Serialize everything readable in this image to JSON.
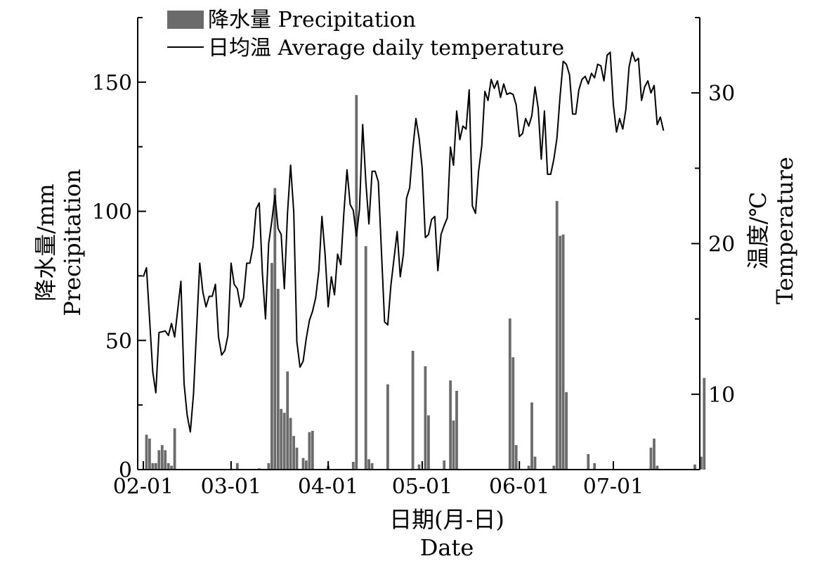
{
  "chart_data": {
    "type": "bar",
    "combo": "bar+line",
    "legend": {
      "placement": "top-left",
      "entries": [
        {
          "label": "降水量 Precipitation",
          "kind": "bar",
          "color": "#6b6b6b"
        },
        {
          "label": "日均温 Average daily temperature",
          "kind": "line",
          "color": "#000000"
        }
      ]
    },
    "x_axis": {
      "label_line1": "日期(月-日)",
      "label_line2": "Date",
      "start": "02-01",
      "end": "07-31",
      "ticks": [
        "02-01",
        "03-01",
        "04-01",
        "05-01",
        "06-01",
        "07-01"
      ]
    },
    "y_left": {
      "label_line1": "降水量/mm",
      "label_line2": "Precipitation",
      "ylim": [
        0,
        175
      ],
      "ticks": [
        0,
        50,
        100,
        150
      ]
    },
    "y_right": {
      "label_line1": "温度/℃",
      "label_line2": "Temperature",
      "ylim": [
        5,
        35
      ],
      "ticks": [
        10,
        20,
        30
      ]
    },
    "series": [
      {
        "name": "降水量 Precipitation",
        "type": "bar",
        "axis": "left",
        "color": "#6b6b6b",
        "points": [
          [
            "02-02",
            13.5
          ],
          [
            "02-03",
            12
          ],
          [
            "02-04",
            2.5
          ],
          [
            "02-05",
            2.5
          ],
          [
            "02-06",
            7.5
          ],
          [
            "02-07",
            9.5
          ],
          [
            "02-08",
            7.5
          ],
          [
            "02-09",
            2.5
          ],
          [
            "02-10",
            1.5
          ],
          [
            "02-11",
            16
          ],
          [
            "03-03",
            2.5
          ],
          [
            "03-10",
            0.5
          ],
          [
            "03-13",
            2.5
          ],
          [
            "03-14",
            80
          ],
          [
            "03-15",
            109
          ],
          [
            "03-16",
            70
          ],
          [
            "03-17",
            23.5
          ],
          [
            "03-18",
            22
          ],
          [
            "03-19",
            38
          ],
          [
            "03-20",
            20
          ],
          [
            "03-21",
            13
          ],
          [
            "03-22",
            8.5
          ],
          [
            "03-24",
            4.5
          ],
          [
            "03-25",
            3.5
          ],
          [
            "03-26",
            14.5
          ],
          [
            "03-27",
            15
          ],
          [
            "04-01",
            1.5
          ],
          [
            "04-09",
            3
          ],
          [
            "04-10",
            145
          ],
          [
            "04-13",
            86.5
          ],
          [
            "04-14",
            4
          ],
          [
            "04-15",
            2.5
          ],
          [
            "04-20",
            33
          ],
          [
            "04-28",
            46
          ],
          [
            "04-30",
            2
          ],
          [
            "05-02",
            40
          ],
          [
            "05-03",
            21
          ],
          [
            "05-08",
            3.5
          ],
          [
            "05-10",
            34.5
          ],
          [
            "05-11",
            19
          ],
          [
            "05-12",
            30.5
          ],
          [
            "05-29",
            58.5
          ],
          [
            "05-30",
            43.5
          ],
          [
            "05-31",
            9.5
          ],
          [
            "06-04",
            1.5
          ],
          [
            "06-05",
            26
          ],
          [
            "06-06",
            5
          ],
          [
            "06-12",
            1.5
          ],
          [
            "06-13",
            104
          ],
          [
            "06-14",
            90.5
          ],
          [
            "06-15",
            91
          ],
          [
            "06-16",
            30
          ],
          [
            "06-23",
            6
          ],
          [
            "06-25",
            2.5
          ],
          [
            "07-13",
            8.5
          ],
          [
            "07-14",
            12
          ],
          [
            "07-15",
            1.5
          ],
          [
            "07-27",
            2
          ],
          [
            "07-29",
            5
          ],
          [
            "07-30",
            35.5
          ]
        ]
      },
      {
        "name": "日均温 Average daily temperature",
        "type": "line",
        "axis": "right",
        "color": "#000000",
        "points": [
          [
            "02-01",
            17.8
          ],
          [
            "02-02",
            18.4
          ],
          [
            "02-04",
            11.5
          ],
          [
            "02-05",
            10.1
          ],
          [
            "02-06",
            14.1
          ],
          [
            "02-08",
            14.2
          ],
          [
            "02-09",
            13.9
          ],
          [
            "02-10",
            14.7
          ],
          [
            "02-11",
            13.8
          ],
          [
            "02-13",
            17.5
          ],
          [
            "02-14",
            10.7
          ],
          [
            "02-15",
            8.6
          ],
          [
            "02-16",
            7.5
          ],
          [
            "02-17",
            10
          ],
          [
            "02-19",
            18.7
          ],
          [
            "02-20",
            16.8
          ],
          [
            "02-21",
            15.8
          ],
          [
            "02-22",
            16.5
          ],
          [
            "02-23",
            16.5
          ],
          [
            "02-24",
            17.3
          ],
          [
            "02-25",
            13.8
          ],
          [
            "02-26",
            12.6
          ],
          [
            "02-27",
            12.9
          ],
          [
            "02-28",
            13.9
          ],
          [
            "03-01",
            18.7
          ],
          [
            "03-02",
            17.3
          ],
          [
            "03-03",
            17
          ],
          [
            "03-04",
            15.8
          ],
          [
            "03-05",
            16.4
          ],
          [
            "03-06",
            18.7
          ],
          [
            "03-07",
            18.7
          ],
          [
            "03-08",
            19.8
          ],
          [
            "03-09",
            22.3
          ],
          [
            "03-10",
            22.7
          ],
          [
            "03-11",
            18
          ],
          [
            "03-12",
            15
          ],
          [
            "03-13",
            20
          ],
          [
            "03-14",
            21.5
          ],
          [
            "03-15",
            23.2
          ],
          [
            "03-16",
            21
          ],
          [
            "03-17",
            20.6
          ],
          [
            "03-18",
            17
          ],
          [
            "03-19",
            22
          ],
          [
            "03-20",
            25.2
          ],
          [
            "03-21",
            22.1
          ],
          [
            "03-22",
            13.5
          ],
          [
            "03-23",
            11.8
          ],
          [
            "03-24",
            12.2
          ],
          [
            "03-25",
            13.7
          ],
          [
            "03-26",
            14.9
          ],
          [
            "03-27",
            15.5
          ],
          [
            "03-28",
            16.4
          ],
          [
            "03-29",
            18.2
          ],
          [
            "03-30",
            21.8
          ],
          [
            "03-31",
            19.3
          ],
          [
            "04-01",
            15.8
          ],
          [
            "04-02",
            17.8
          ],
          [
            "04-03",
            16.6
          ],
          [
            "04-04",
            19.3
          ],
          [
            "04-05",
            18.6
          ],
          [
            "04-06",
            22
          ],
          [
            "04-07",
            24.9
          ],
          [
            "04-08",
            22.6
          ],
          [
            "04-09",
            22.2
          ],
          [
            "04-10",
            20.5
          ],
          [
            "04-11",
            22.3
          ],
          [
            "04-12",
            27.9
          ],
          [
            "04-13",
            24.1
          ],
          [
            "04-14",
            21.3
          ],
          [
            "04-15",
            24.8
          ],
          [
            "04-16",
            24.8
          ],
          [
            "04-17",
            24.1
          ],
          [
            "04-18",
            19.4
          ],
          [
            "04-19",
            14.8
          ],
          [
            "04-20",
            14.6
          ],
          [
            "04-21",
            17.2
          ],
          [
            "04-22",
            19
          ],
          [
            "04-23",
            20.8
          ],
          [
            "04-24",
            17.8
          ],
          [
            "04-25",
            19.3
          ],
          [
            "04-26",
            23
          ],
          [
            "04-27",
            23.7
          ],
          [
            "04-28",
            26.3
          ],
          [
            "04-29",
            28.3
          ],
          [
            "04-30",
            27
          ],
          [
            "05-01",
            25
          ],
          [
            "05-02",
            20.4
          ],
          [
            "05-03",
            20.6
          ],
          [
            "05-04",
            21.6
          ],
          [
            "05-05",
            21.8
          ],
          [
            "05-06",
            18.2
          ],
          [
            "05-07",
            20.6
          ],
          [
            "05-08",
            21.2
          ],
          [
            "05-09",
            21.7
          ],
          [
            "05-10",
            26.4
          ],
          [
            "05-11",
            25.2
          ],
          [
            "05-12",
            28.8
          ],
          [
            "05-13",
            26.9
          ],
          [
            "05-14",
            27.8
          ],
          [
            "05-15",
            27.6
          ],
          [
            "05-16",
            30.2
          ],
          [
            "05-17",
            22.5
          ],
          [
            "05-18",
            22
          ],
          [
            "05-19",
            24.8
          ],
          [
            "05-20",
            26.5
          ],
          [
            "05-21",
            30.1
          ],
          [
            "05-22",
            29.5
          ],
          [
            "05-23",
            30.9
          ],
          [
            "05-24",
            30.3
          ],
          [
            "05-25",
            30.8
          ],
          [
            "05-26",
            29.7
          ],
          [
            "05-27",
            30.6
          ],
          [
            "05-28",
            29.9
          ],
          [
            "05-29",
            30
          ],
          [
            "05-30",
            29.9
          ],
          [
            "05-31",
            29.2
          ],
          [
            "06-01",
            27.1
          ],
          [
            "06-02",
            27.3
          ],
          [
            "06-03",
            28.3
          ],
          [
            "06-04",
            27.8
          ],
          [
            "06-05",
            28.5
          ],
          [
            "06-06",
            30.4
          ],
          [
            "06-07",
            29
          ],
          [
            "06-08",
            25.6
          ],
          [
            "06-09",
            28.8
          ],
          [
            "06-10",
            24.6
          ],
          [
            "06-11",
            24.6
          ],
          [
            "06-12",
            25.6
          ],
          [
            "06-13",
            27
          ],
          [
            "06-14",
            29.8
          ],
          [
            "06-15",
            32.1
          ],
          [
            "06-16",
            31.9
          ],
          [
            "06-17",
            31.2
          ],
          [
            "06-18",
            28.6
          ],
          [
            "06-19",
            28.6
          ],
          [
            "06-20",
            30.2
          ],
          [
            "06-21",
            30.9
          ],
          [
            "06-22",
            31.1
          ],
          [
            "06-23",
            30.6
          ],
          [
            "06-24",
            31.3
          ],
          [
            "06-25",
            31
          ],
          [
            "06-26",
            31.9
          ],
          [
            "06-27",
            31.8
          ],
          [
            "06-28",
            30.8
          ],
          [
            "06-29",
            32.5
          ],
          [
            "06-30",
            32.7
          ],
          [
            "07-01",
            29.2
          ],
          [
            "07-02",
            27.4
          ],
          [
            "07-03",
            28.3
          ],
          [
            "07-04",
            27.6
          ],
          [
            "07-05",
            28.9
          ],
          [
            "07-06",
            31.7
          ],
          [
            "07-07",
            32.7
          ],
          [
            "07-08",
            32.1
          ],
          [
            "07-09",
            32.3
          ],
          [
            "07-10",
            29.5
          ],
          [
            "07-11",
            30.4
          ],
          [
            "07-12",
            30.8
          ],
          [
            "07-13",
            30
          ],
          [
            "07-14",
            30.5
          ],
          [
            "07-15",
            27.9
          ],
          [
            "07-16",
            28.4
          ],
          [
            "07-17",
            27.5
          ]
        ]
      }
    ]
  }
}
